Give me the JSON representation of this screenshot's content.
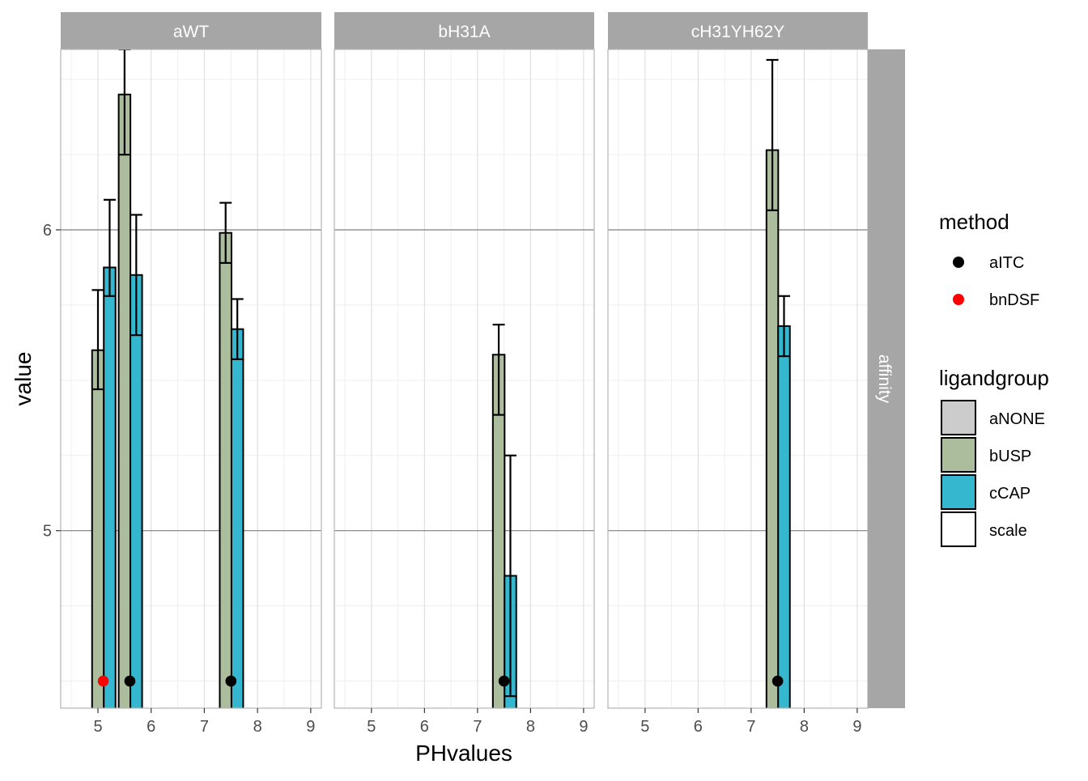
{
  "chart_data": {
    "type": "bar",
    "subtype": "faceted bar chart with error bars and points",
    "xlabel": "PHvalues",
    "ylabel": "value",
    "x_ticks": [
      "5",
      "6",
      "7",
      "8",
      "9"
    ],
    "y_ticks": [
      "5",
      "6"
    ],
    "xlim": [
      4.3,
      9.2
    ],
    "ylim": [
      4.41,
      6.6
    ],
    "grid": true,
    "row_strip": "affinity",
    "facets": [
      {
        "label": "aWT",
        "bars": [
          {
            "group": "bUSP",
            "x": 5.0,
            "value": 5.6,
            "error_low": 5.47,
            "error_high": 5.8
          },
          {
            "group": "cCAP",
            "x": 5.22,
            "value": 5.875,
            "error_low": 5.78,
            "error_high": 6.1
          },
          {
            "group": "bUSP",
            "x": 5.5,
            "value": 6.45,
            "error_low": 6.25,
            "error_high": 6.6
          },
          {
            "group": "cCAP",
            "x": 5.72,
            "value": 5.85,
            "error_low": 5.65,
            "error_high": 6.05
          },
          {
            "group": "bUSP",
            "x": 7.4,
            "value": 5.99,
            "error_low": 5.89,
            "error_high": 6.09
          },
          {
            "group": "cCAP",
            "x": 7.62,
            "value": 5.67,
            "error_low": 5.57,
            "error_high": 5.77
          }
        ],
        "points": [
          {
            "method": "bnDSF",
            "x": 5.1,
            "value": 4.5
          },
          {
            "method": "aITC",
            "x": 5.6,
            "value": 4.5
          },
          {
            "method": "aITC",
            "x": 7.5,
            "value": 4.5
          }
        ]
      },
      {
        "label": "bH31A",
        "bars": [
          {
            "group": "bUSP",
            "x": 7.4,
            "value": 5.585,
            "error_low": 5.385,
            "error_high": 5.685
          },
          {
            "group": "cCAP",
            "x": 7.62,
            "value": 4.85,
            "error_low": 4.45,
            "error_high": 5.25
          }
        ],
        "points": [
          {
            "method": "aITC",
            "x": 7.5,
            "value": 4.5
          }
        ]
      },
      {
        "label": "cH31YH62Y",
        "bars": [
          {
            "group": "bUSP",
            "x": 7.4,
            "value": 6.265,
            "error_low": 6.065,
            "error_high": 6.565
          },
          {
            "group": "cCAP",
            "x": 7.62,
            "value": 5.68,
            "error_low": 5.58,
            "error_high": 5.78
          }
        ],
        "points": [
          {
            "method": "aITC",
            "x": 7.5,
            "value": 4.5
          }
        ]
      }
    ],
    "legend": {
      "placement": "right",
      "method_title": "method",
      "method_entries": [
        {
          "label": "aITC",
          "color": "#000000"
        },
        {
          "label": "bnDSF",
          "color": "#ff0000"
        }
      ],
      "ligand_title": "ligandgroup",
      "ligand_entries": [
        {
          "label": "aNONE",
          "color": "#cccccc"
        },
        {
          "label": "bUSP",
          "color": "#abbd9c"
        },
        {
          "label": "cCAP",
          "color": "#35b8cf"
        },
        {
          "label": "scale",
          "color": "#ffffff"
        }
      ]
    },
    "colors": {
      "strip_background": "#a6a6a6",
      "strip_text": "#ffffff",
      "panel_border": "#b3b3b3",
      "major_grid": "#e0e0e0",
      "minor_grid": "#efefef",
      "hline": "#7f7f7f"
    }
  }
}
